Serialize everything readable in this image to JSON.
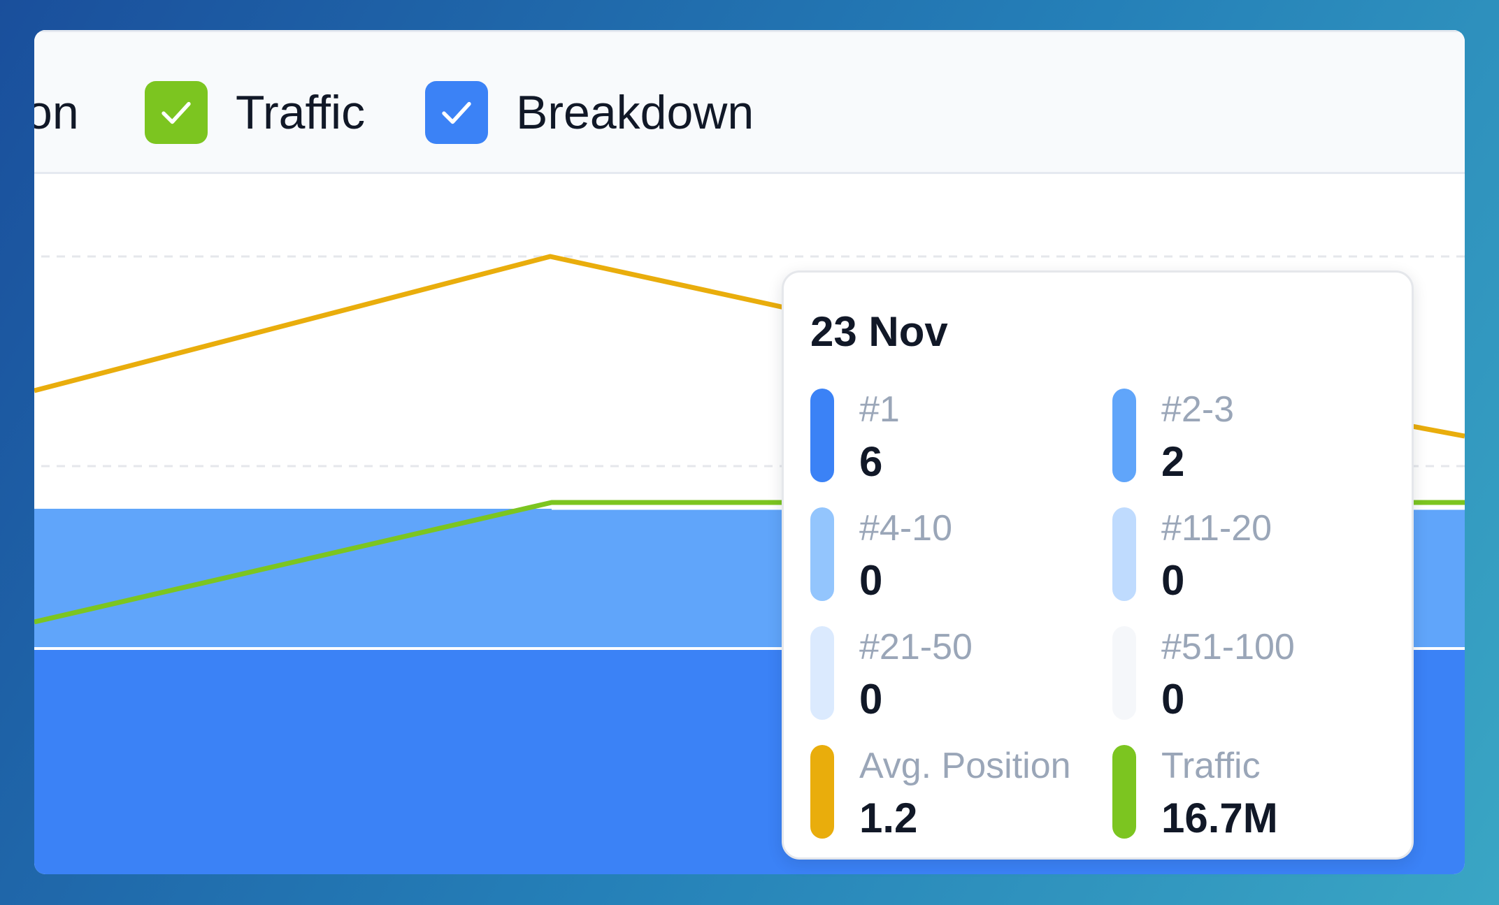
{
  "toolbar": {
    "partial_label": "on",
    "traffic_label": "Traffic",
    "breakdown_label": "Breakdown"
  },
  "colors": {
    "traffic_green": "#7cc520",
    "breakdown_blue": "#3b82f6",
    "avg_position_line": "#e9ad0c",
    "band_top": "#60a5fa",
    "band_bottom": "#3b82f6"
  },
  "icons": {
    "checkbox": "check-icon"
  },
  "tooltip": {
    "date": "23 Nov",
    "items": [
      {
        "label": "#1",
        "value": "6",
        "color": "#3b82f6"
      },
      {
        "label": "#2-3",
        "value": "2",
        "color": "#60a5fa"
      },
      {
        "label": "#4-10",
        "value": "0",
        "color": "#93c5fd"
      },
      {
        "label": "#11-20",
        "value": "0",
        "color": "#bfdbfe"
      },
      {
        "label": "#21-50",
        "value": "0",
        "color": "#dbeafe"
      },
      {
        "label": "#51-100",
        "value": "0",
        "color": "#f5f7fa"
      },
      {
        "label": "Avg. Position",
        "value": "1.2",
        "color": "#e9ad0c"
      },
      {
        "label": "Traffic",
        "value": "16.7M",
        "color": "#7cc520"
      }
    ]
  }
}
